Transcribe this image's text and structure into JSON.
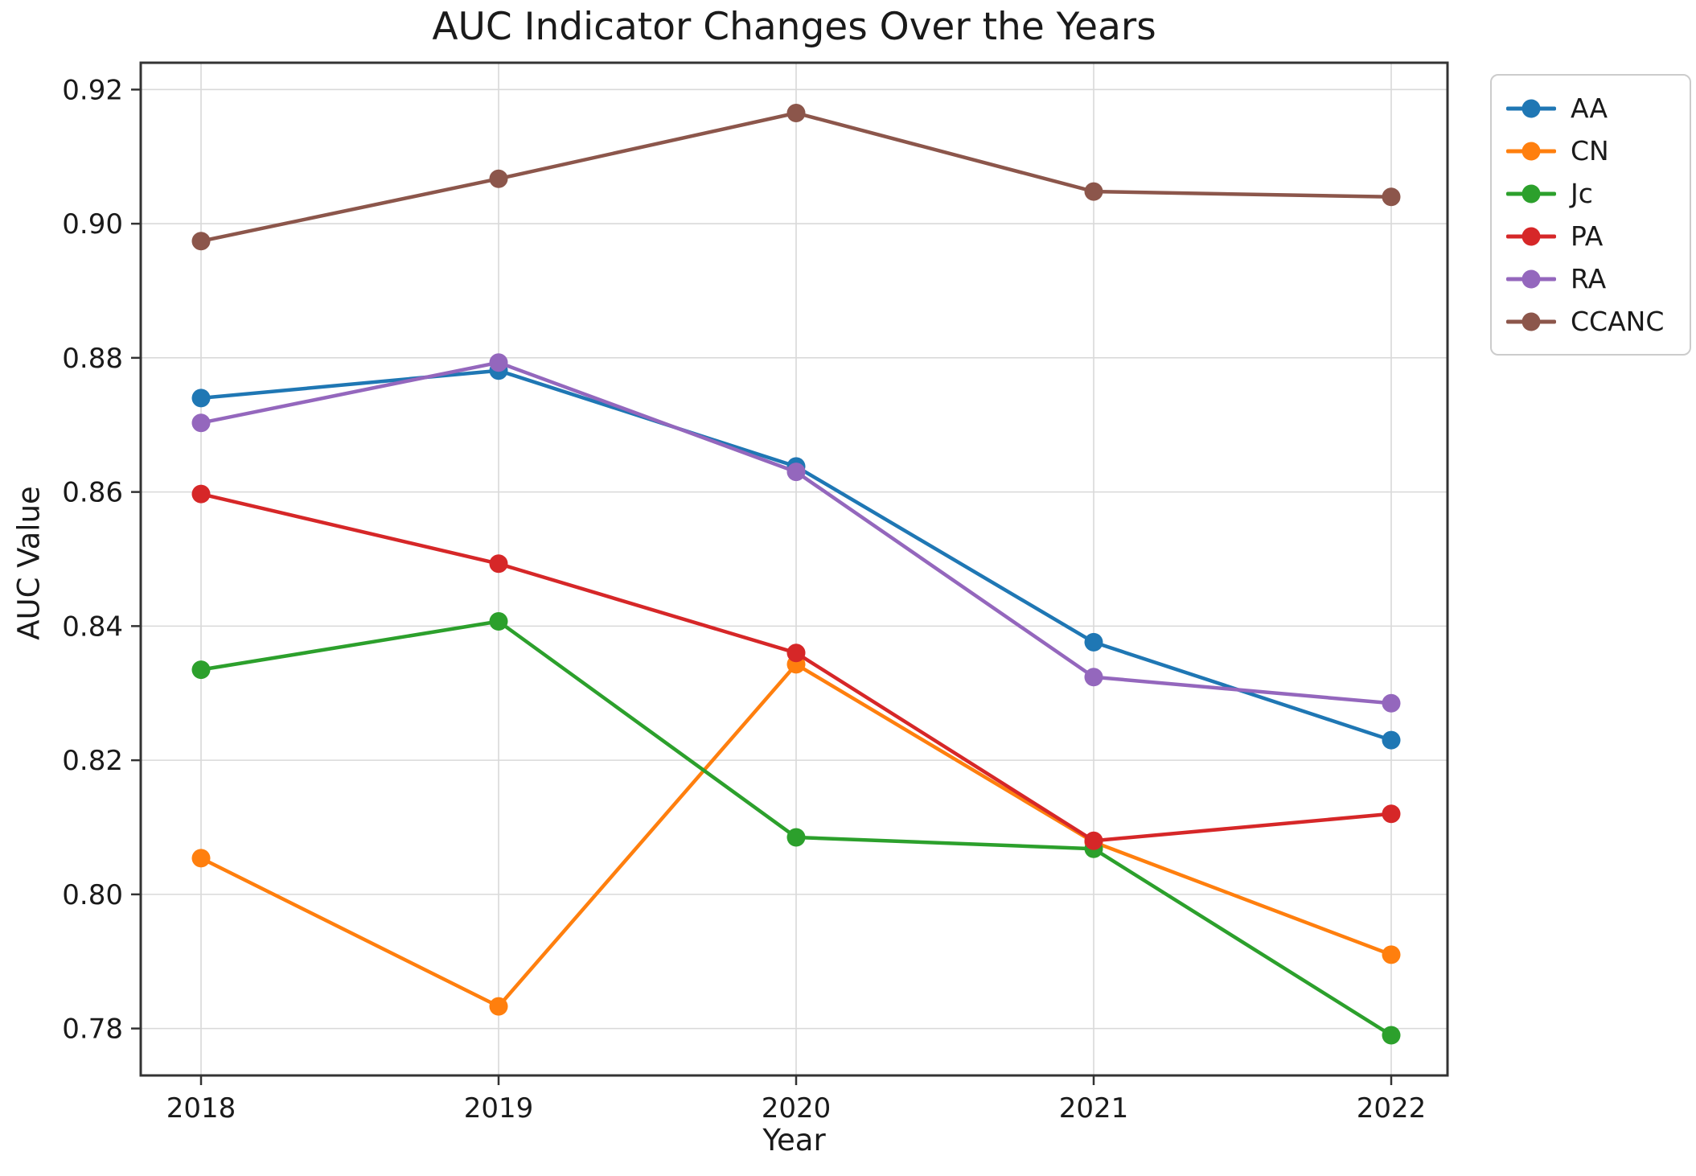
{
  "chart_data": {
    "type": "line",
    "title": "AUC Indicator Changes Over the Years",
    "xlabel": "Year",
    "ylabel": "AUC Value",
    "x": [
      2018,
      2019,
      2020,
      2021,
      2022
    ],
    "xticks": [
      "2018",
      "2019",
      "2020",
      "2021",
      "2022"
    ],
    "yticks": [
      "0.78",
      "0.80",
      "0.82",
      "0.84",
      "0.86",
      "0.88",
      "0.90",
      "0.92"
    ],
    "ylim": [
      0.773,
      0.924
    ],
    "grid": true,
    "legend_position": "outside upper right",
    "series": [
      {
        "name": "AA",
        "color": "#1f77b4",
        "values": [
          0.874,
          0.8781,
          0.8638,
          0.8376,
          0.823
        ]
      },
      {
        "name": "CN",
        "color": "#ff7f0e",
        "values": [
          0.8054,
          0.7833,
          0.8343,
          0.8078,
          0.791
        ]
      },
      {
        "name": "Jc",
        "color": "#2ca02c",
        "values": [
          0.8335,
          0.8407,
          0.8085,
          0.8068,
          0.779
        ]
      },
      {
        "name": "PA",
        "color": "#d62728",
        "values": [
          0.8597,
          0.8493,
          0.836,
          0.808,
          0.812
        ]
      },
      {
        "name": "RA",
        "color": "#9467bd",
        "values": [
          0.8703,
          0.8793,
          0.863,
          0.8324,
          0.8285
        ]
      },
      {
        "name": "CCANC",
        "color": "#8c564b",
        "values": [
          0.8974,
          0.9067,
          0.9165,
          0.9048,
          0.904
        ]
      }
    ],
    "style": {
      "grid_color": "#d9d9d9",
      "spine_color": "#333333",
      "tick_label_color": "#1a1a1a"
    }
  }
}
